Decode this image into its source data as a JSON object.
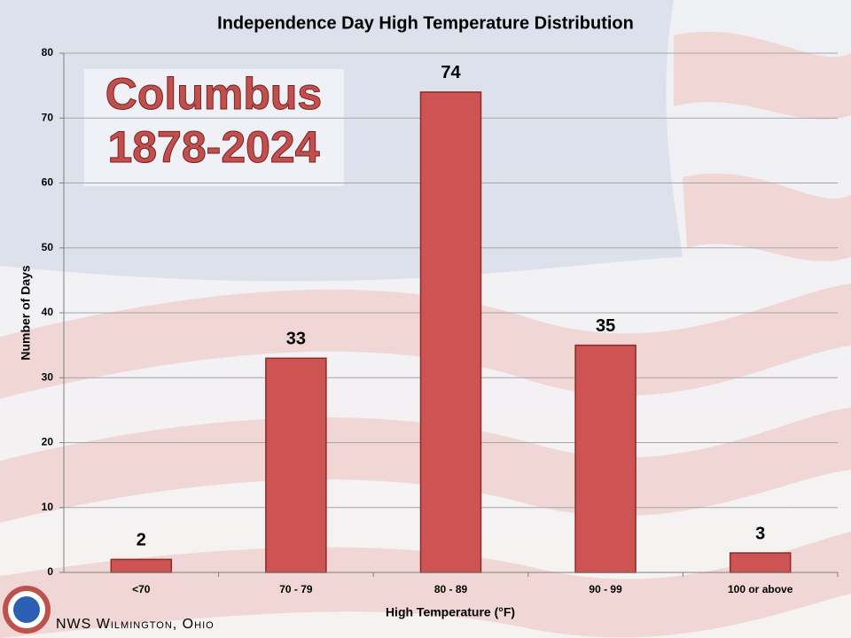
{
  "chart_data": {
    "type": "bar",
    "title": "Independence Day High Temperature Distribution",
    "annotations": [
      "Columbus",
      "1878-2024"
    ],
    "source": "NWS Wilmington, Ohio",
    "x_label": "High Temperature (°F)",
    "y_label": "Number of Days",
    "categories": [
      "<70",
      "70 - 79",
      "80 - 89",
      "90 - 99",
      "100 or above"
    ],
    "values": [
      2,
      33,
      74,
      35,
      3
    ],
    "color": "#cd5452",
    "ylim": [
      0,
      80
    ],
    "yticks": [
      0,
      10,
      20,
      30,
      40,
      50,
      60,
      70,
      80
    ],
    "grid": true
  }
}
